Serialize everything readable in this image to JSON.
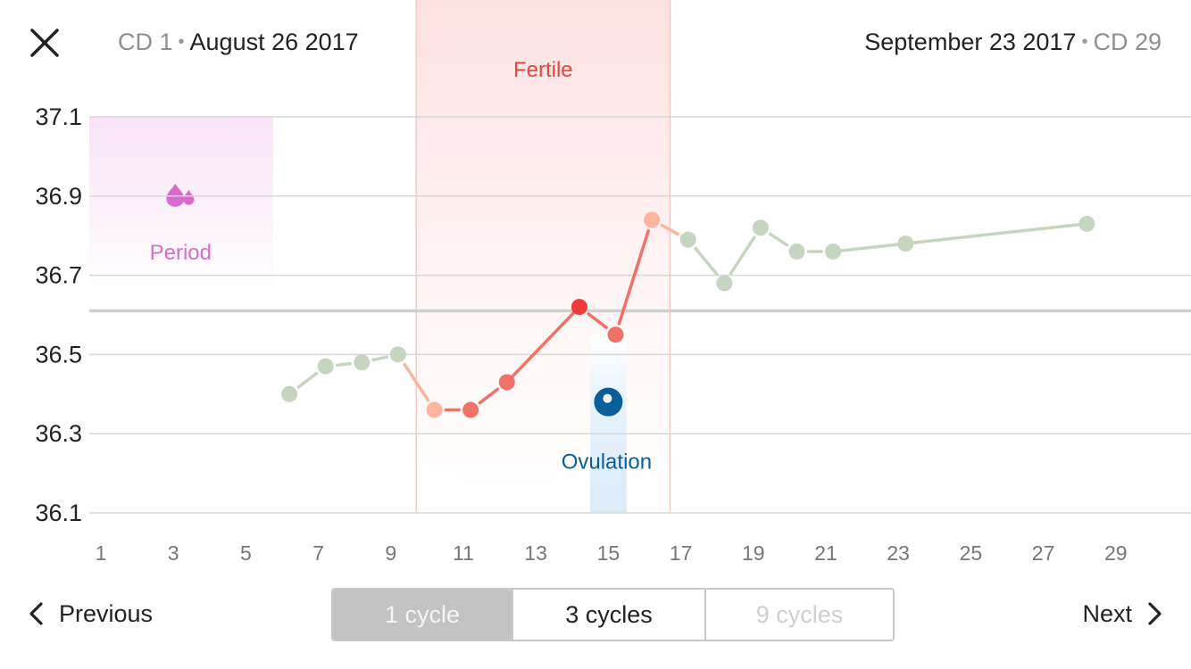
{
  "header": {
    "start_cd": "CD 1",
    "start_date": "August 26 2017",
    "end_date": "September 23 2017",
    "end_cd": "CD 29",
    "separator": "•",
    "close_icon": "close-icon"
  },
  "chart_data": {
    "type": "line",
    "xlim": [
      1,
      30
    ],
    "ylim": [
      36.1,
      37.1
    ],
    "x_ticks": [
      1,
      3,
      5,
      7,
      9,
      11,
      13,
      15,
      17,
      19,
      21,
      23,
      25,
      27,
      29
    ],
    "y_ticks": [
      "37.1",
      "36.9",
      "36.7",
      "36.5",
      "36.3",
      "36.1"
    ],
    "reference_line": 36.61,
    "bands": [
      {
        "label": "Period",
        "x_start": 0.75,
        "x_end": 5.75,
        "y_top": 37.1,
        "color": "#e07bd2",
        "icon": "blood-drops-icon"
      },
      {
        "label": "Fertile",
        "x_start": 9.7,
        "x_end": 16.7,
        "color": "#f08080"
      },
      {
        "label": "Ovulation",
        "x_start": 14.5,
        "x_end": 15.5,
        "color": "#0a5e9a",
        "icon": "ovulation-icon"
      }
    ],
    "points": [
      {
        "x": 6.2,
        "y": 36.4,
        "state": "normal"
      },
      {
        "x": 7.2,
        "y": 36.47,
        "state": "normal"
      },
      {
        "x": 8.2,
        "y": 36.48,
        "state": "normal"
      },
      {
        "x": 9.2,
        "y": 36.5,
        "state": "normal"
      },
      {
        "x": 10.2,
        "y": 36.36,
        "state": "low-fertile"
      },
      {
        "x": 11.2,
        "y": 36.36,
        "state": "fertile"
      },
      {
        "x": 12.2,
        "y": 36.43,
        "state": "fertile"
      },
      {
        "x": 14.2,
        "y": 36.62,
        "state": "peak"
      },
      {
        "x": 15.2,
        "y": 36.55,
        "state": "fertile"
      },
      {
        "x": 16.2,
        "y": 36.84,
        "state": "low-fertile"
      },
      {
        "x": 17.2,
        "y": 36.79,
        "state": "normal"
      },
      {
        "x": 18.2,
        "y": 36.68,
        "state": "normal"
      },
      {
        "x": 19.2,
        "y": 36.82,
        "state": "normal"
      },
      {
        "x": 20.2,
        "y": 36.76,
        "state": "normal"
      },
      {
        "x": 21.2,
        "y": 36.76,
        "state": "normal"
      },
      {
        "x": 23.2,
        "y": 36.78,
        "state": "normal"
      },
      {
        "x": 28.2,
        "y": 36.83,
        "state": "normal"
      }
    ],
    "colors": {
      "normal": "#c6d5c0",
      "low-fertile": "#fbb59f",
      "fertile": "#f07168",
      "peak": "#ee3b3b",
      "grid": "#d8d8d8",
      "reference": "#cfcfcf",
      "axis_text": "#777777",
      "y_text": "#222222",
      "period_text": "#d86ccd",
      "fertile_text": "#e8453c",
      "ovulation_text": "#0a5e9a"
    }
  },
  "footer": {
    "previous_label": "Previous",
    "next_label": "Next",
    "segments": [
      "1 cycle",
      "3 cycles",
      "9 cycles"
    ],
    "selected_segment": "1 cycle",
    "disabled_segment": "9 cycles"
  }
}
